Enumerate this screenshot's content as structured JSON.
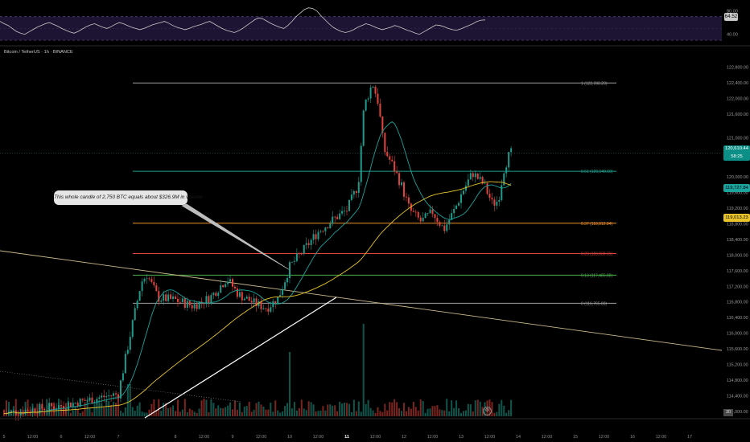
{
  "header": {
    "symbol": "Bitcoin / TetherUS · 1h · BINANCE"
  },
  "annotation": {
    "callout": "This whole candle of 2,750 BTC equals about $326.9M in volume"
  },
  "rsi": {
    "current_label": "64.52",
    "value": 64.52,
    "levels": [
      30,
      70
    ],
    "axis_labels": [
      "80.00",
      "40.00"
    ],
    "axis_values": [
      80,
      40
    ],
    "range": [
      26,
      86
    ],
    "series": [
      62,
      58,
      55,
      50,
      45,
      42,
      40,
      44,
      48,
      52,
      55,
      58,
      60,
      57,
      54,
      50,
      47,
      44,
      42,
      45,
      49,
      53,
      56,
      58,
      55,
      52,
      50,
      53,
      57,
      60,
      58,
      55,
      52,
      50,
      48,
      50,
      53,
      56,
      58,
      60,
      62,
      59,
      55,
      52,
      50,
      48,
      50,
      53,
      55,
      57,
      60,
      62,
      58,
      54,
      50,
      47,
      45,
      43,
      46,
      50,
      55,
      60,
      65,
      68,
      66,
      62,
      58,
      55,
      52,
      50,
      55,
      62,
      70,
      76,
      82,
      85,
      84,
      80,
      72,
      65,
      58,
      52,
      48,
      45,
      43,
      45,
      48,
      52,
      55,
      58,
      56,
      53,
      50,
      48,
      50,
      52,
      55,
      53,
      50,
      47,
      45,
      42,
      40,
      44,
      48,
      52,
      56,
      55,
      53,
      50,
      48,
      47,
      49,
      52,
      55,
      58,
      62,
      64,
      64.5
    ]
  },
  "price_axis": {
    "ticks": [
      "122,800.00",
      "122,400.00",
      "122,000.00",
      "121,600.00",
      "121,000.00",
      "120,600.00",
      "120,000.00",
      "119,600.00",
      "119,200.00",
      "118,800.00",
      "118,400.00",
      "118,000.00",
      "117,600.00",
      "117,200.00",
      "116,800.00",
      "116,400.00",
      "116,000.00",
      "115,600.00",
      "115,200.00",
      "114,800.00",
      "114,400.00",
      "114,000.00"
    ],
    "tick_values": [
      122800,
      122400,
      122000,
      121600,
      121000,
      120600,
      120000,
      119600,
      119200,
      118800,
      118400,
      118000,
      117600,
      117200,
      116800,
      116400,
      116000,
      115600,
      115200,
      114800,
      114400,
      114000
    ],
    "last_price": "120,610.44",
    "countdown": "58:25",
    "ema_label": "119,727.84",
    "sma_label": "119,013.23",
    "corner": "30"
  },
  "time_axis": {
    "labels": [
      "5",
      "12:00",
      "6",
      "12:00",
      "7",
      "8",
      "12:00",
      "9",
      "12:00",
      "10",
      "12:00",
      "11",
      "12:00",
      "12",
      "12:00",
      "13",
      "12:00",
      "14",
      "12:00",
      "15",
      "12:00",
      "16",
      "12:00",
      "17"
    ]
  },
  "fib": {
    "levels": [
      {
        "label": "1 (122,398.20)",
        "ratio": 1,
        "price": 122398.2,
        "color": "#9c9c9c"
      },
      {
        "label": "0.61 (120,140.60)",
        "ratio": 0.61,
        "price": 120140.6,
        "color": "#1f9e8c"
      },
      {
        "label": "0.37 (118,812.84)",
        "ratio": 0.37,
        "price": 118812.84,
        "color": "#f0912b"
      },
      {
        "label": "0.23 (118,038.31)",
        "ratio": 0.23,
        "price": 118038.31,
        "color": "#e0443e"
      },
      {
        "label": "0.13 (117,485.08)",
        "ratio": 0.13,
        "price": 117485.08,
        "color": "#4caf50"
      },
      {
        "label": "0 (116,765.88)",
        "ratio": 0,
        "price": 116765.88,
        "color": "#9c9c9c"
      }
    ]
  },
  "colors": {
    "up": "#1e9a8a",
    "down": "#e0433d",
    "ema": "#1ba39c",
    "sma": "#e8c42a",
    "rsi_line": "#c8c8c8",
    "rsi_band": "#1d1433",
    "trendline_down": "#c9b98a",
    "trendline_up": "#ffffff"
  },
  "chart_data": {
    "type": "candlestick",
    "interval": "1h",
    "price_range": [
      114000,
      123000
    ],
    "time_labels_sequence": [
      "5",
      "12:00",
      "6",
      "12:00",
      "7",
      "8",
      "12:00",
      "9",
      "12:00",
      "10",
      "12:00",
      "11",
      "12:00",
      "12",
      "12:00",
      "13",
      "12:00",
      "14",
      "12:00",
      "15",
      "12:00",
      "16",
      "12:00",
      "17"
    ],
    "close_path_by_day_fraction": [
      [
        0,
        113950
      ],
      [
        0.5,
        114050
      ],
      [
        1.0,
        114150
      ],
      [
        1.5,
        114300
      ],
      [
        2.0,
        114450
      ],
      [
        2.2,
        115900
      ],
      [
        2.4,
        117300
      ],
      [
        2.5,
        117500
      ],
      [
        2.7,
        116900
      ],
      [
        3.0,
        116850
      ],
      [
        3.3,
        116700
      ],
      [
        3.6,
        116900
      ],
      [
        3.9,
        117400
      ],
      [
        4.1,
        117000
      ],
      [
        4.4,
        116750
      ],
      [
        4.6,
        116650
      ],
      [
        4.8,
        116900
      ],
      [
        5.0,
        117700
      ],
      [
        5.2,
        118050
      ],
      [
        5.5,
        118600
      ],
      [
        5.8,
        118950
      ],
      [
        6.0,
        119150
      ],
      [
        6.2,
        119800
      ],
      [
        6.3,
        121800
      ],
      [
        6.45,
        122400
      ],
      [
        6.55,
        121900
      ],
      [
        6.65,
        120700
      ],
      [
        6.8,
        120300
      ],
      [
        6.95,
        119800
      ],
      [
        7.1,
        119150
      ],
      [
        7.3,
        118850
      ],
      [
        7.5,
        119100
      ],
      [
        7.7,
        118650
      ],
      [
        7.9,
        119200
      ],
      [
        8.0,
        119550
      ],
      [
        8.2,
        120100
      ],
      [
        8.4,
        119800
      ],
      [
        8.55,
        119300
      ],
      [
        8.65,
        119400
      ],
      [
        8.75,
        120200
      ],
      [
        8.85,
        120600
      ],
      [
        8.9,
        120610
      ]
    ],
    "ema": {
      "name": "EMA",
      "last": 119727.84
    },
    "sma": {
      "name": "SMA",
      "last": 119013.23
    },
    "last_price": 120610.44,
    "volume_spike_note": "This whole candle of 2,750 BTC equals about $326.9M in volume"
  }
}
